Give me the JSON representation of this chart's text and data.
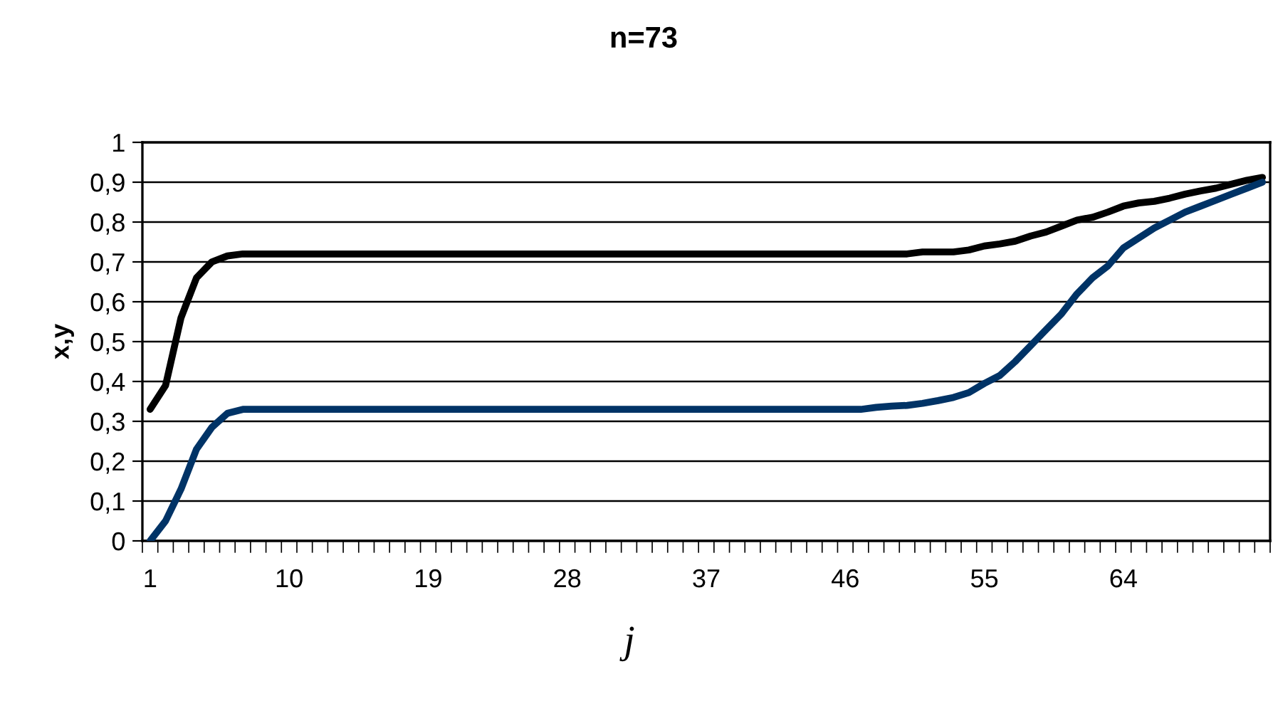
{
  "chart_data": {
    "type": "line",
    "title": "n=73",
    "xlabel": "j",
    "ylabel": "x,y",
    "categories": [
      "1",
      null,
      null,
      null,
      null,
      null,
      null,
      null,
      null,
      "10",
      null,
      null,
      null,
      null,
      null,
      null,
      null,
      null,
      "19",
      null,
      null,
      null,
      null,
      null,
      null,
      null,
      null,
      "28",
      null,
      null,
      null,
      null,
      null,
      null,
      null,
      null,
      "37",
      null,
      null,
      null,
      null,
      null,
      null,
      null,
      null,
      "46",
      null,
      null,
      null,
      null,
      null,
      null,
      null,
      null,
      "55",
      null,
      null,
      null,
      null,
      null,
      null,
      null,
      null,
      "64",
      null,
      null,
      null,
      null,
      null,
      null,
      null,
      null,
      null
    ],
    "series": [
      {
        "color": "#000000",
        "values": [
          0.33,
          0.39,
          0.56,
          0.66,
          0.7,
          0.715,
          0.72,
          0.72,
          0.72,
          0.72,
          0.72,
          0.72,
          0.72,
          0.72,
          0.72,
          0.72,
          0.72,
          0.72,
          0.72,
          0.72,
          0.72,
          0.72,
          0.72,
          0.72,
          0.72,
          0.72,
          0.72,
          0.72,
          0.72,
          0.72,
          0.72,
          0.72,
          0.72,
          0.72,
          0.72,
          0.72,
          0.72,
          0.72,
          0.72,
          0.72,
          0.72,
          0.72,
          0.72,
          0.72,
          0.72,
          0.72,
          0.72,
          0.72,
          0.72,
          0.72,
          0.725,
          0.725,
          0.725,
          0.73,
          0.74,
          0.745,
          0.752,
          0.765,
          0.775,
          0.79,
          0.805,
          0.812,
          0.825,
          0.84,
          0.848,
          0.852,
          0.86,
          0.87,
          0.878,
          0.885,
          0.895,
          0.905,
          0.912
        ]
      },
      {
        "color": "#003366",
        "values": [
          0,
          0.05,
          0.13,
          0.23,
          0.285,
          0.32,
          0.33,
          0.33,
          0.33,
          0.33,
          0.33,
          0.33,
          0.33,
          0.33,
          0.33,
          0.33,
          0.33,
          0.33,
          0.33,
          0.33,
          0.33,
          0.33,
          0.33,
          0.33,
          0.33,
          0.33,
          0.33,
          0.33,
          0.33,
          0.33,
          0.33,
          0.33,
          0.33,
          0.33,
          0.33,
          0.33,
          0.33,
          0.33,
          0.33,
          0.33,
          0.33,
          0.33,
          0.33,
          0.33,
          0.33,
          0.33,
          0.33,
          0.335,
          0.338,
          0.34,
          0.345,
          0.352,
          0.36,
          0.372,
          0.395,
          0.415,
          0.45,
          0.49,
          0.53,
          0.57,
          0.62,
          0.66,
          0.69,
          0.735,
          0.76,
          0.785,
          0.805,
          0.825,
          0.84,
          0.855,
          0.87,
          0.885,
          0.9
        ]
      }
    ],
    "ylim": [
      0,
      1
    ],
    "yticks": [
      0,
      {
        "value": 0.1,
        "label": "0,1"
      },
      {
        "value": 0.2,
        "label": "0,2"
      },
      {
        "value": 0.3,
        "label": "0,3"
      },
      {
        "value": 0.4,
        "label": "0,4"
      },
      {
        "value": 0.5,
        "label": "0,5"
      },
      {
        "value": 0.6,
        "label": "0,6"
      },
      {
        "value": 0.7,
        "label": "0,7"
      },
      {
        "value": 0.8,
        "label": "0,8"
      },
      {
        "value": 0.9,
        "label": "0,9"
      },
      1
    ],
    "grid": "y",
    "legend": false,
    "marker": "none",
    "line_style": "solid"
  }
}
